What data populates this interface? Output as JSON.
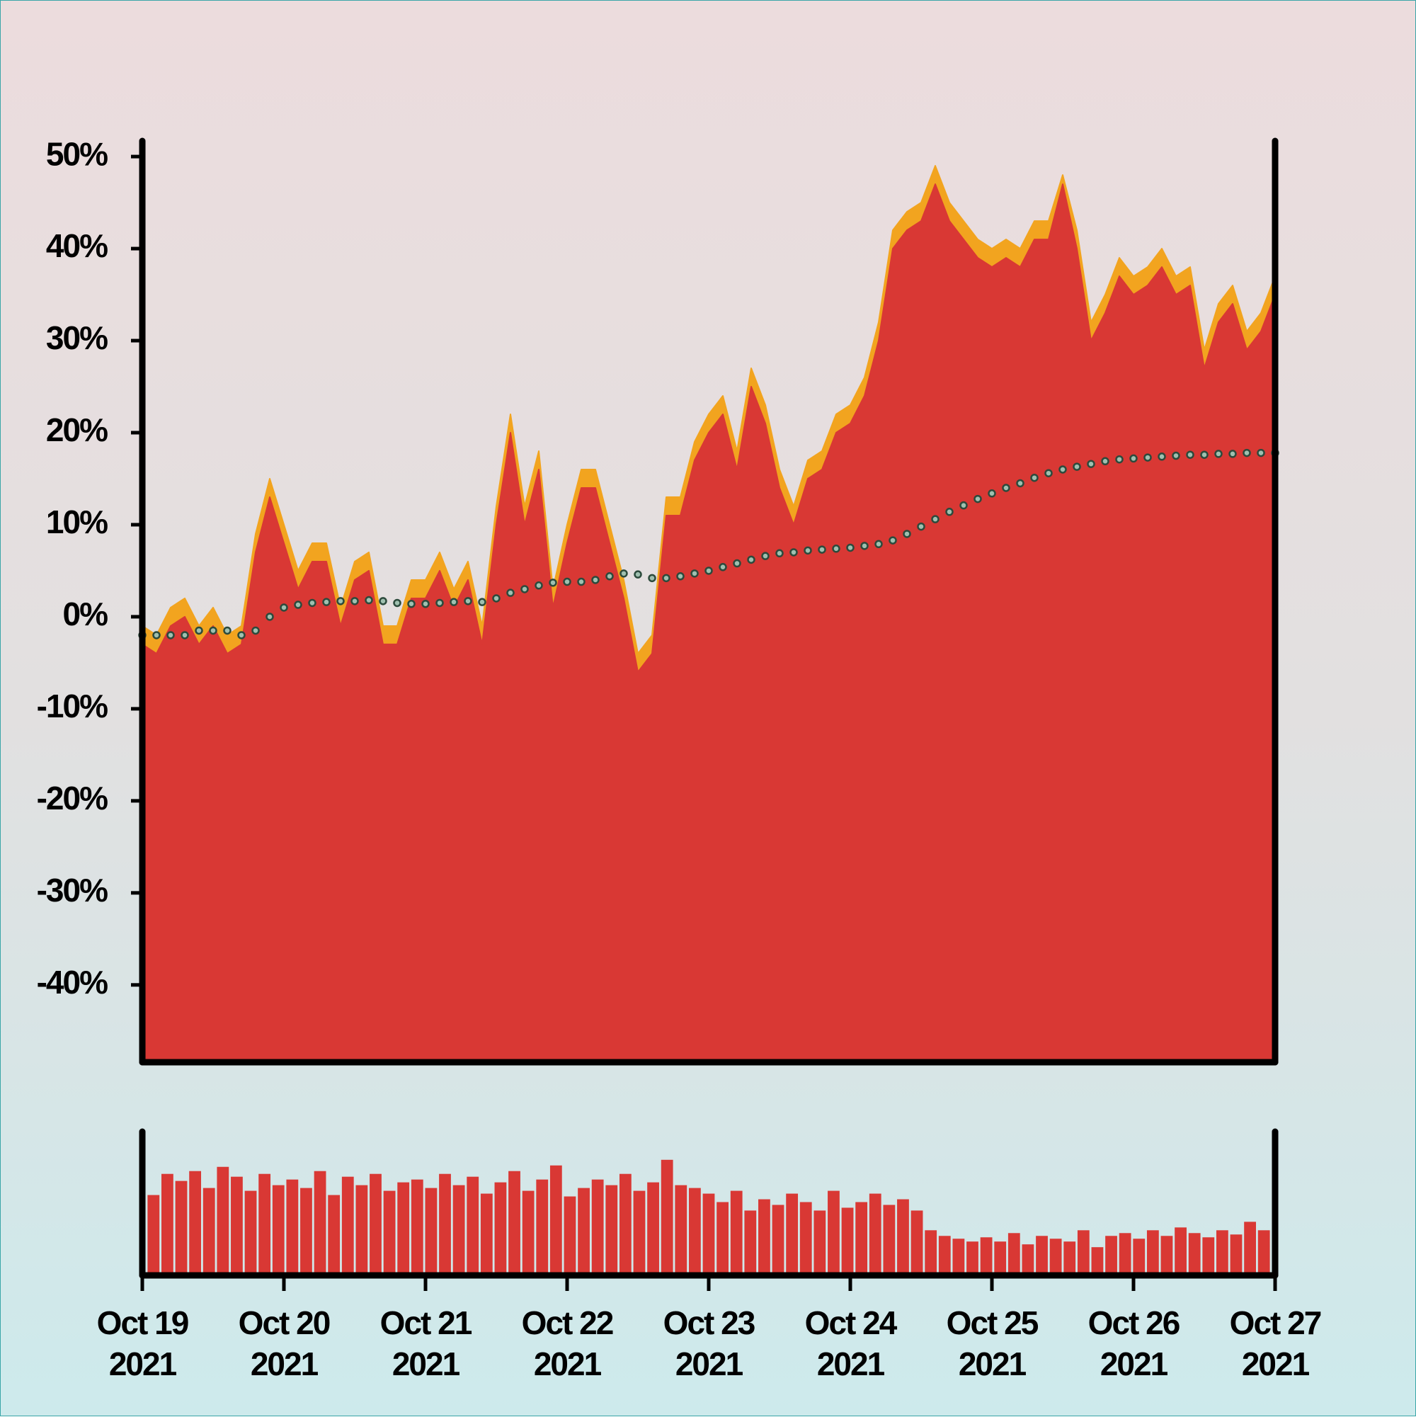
{
  "chart_data": [
    {
      "type": "area",
      "xlim": [
        0,
        8
      ],
      "ylim": [
        -48.4,
        51.7
      ],
      "yticks": [
        {
          "value": -40,
          "label": "-40%"
        },
        {
          "value": -30,
          "label": "-30%"
        },
        {
          "value": -20,
          "label": "-20%"
        },
        {
          "value": -10,
          "label": "-10%"
        },
        {
          "value": 0,
          "label": "0%"
        },
        {
          "value": 10,
          "label": "10%"
        },
        {
          "value": 20,
          "label": "20%"
        },
        {
          "value": 30,
          "label": "30%"
        },
        {
          "value": 40,
          "label": "40%"
        },
        {
          "value": 50,
          "label": "50%"
        }
      ],
      "grid": false,
      "series": [
        {
          "style": "area",
          "color": "#f2a41f",
          "values": [
            -1,
            -2,
            1,
            2,
            -1,
            1,
            -2,
            -1,
            9,
            15,
            10,
            5,
            8,
            8,
            1,
            6,
            7,
            -1,
            -1,
            4,
            4,
            7,
            3,
            6,
            -1,
            12,
            22,
            12,
            18,
            3,
            10,
            16,
            16,
            10,
            4,
            -4,
            -2,
            13,
            13,
            19,
            22,
            24,
            18,
            27,
            23,
            16,
            12,
            17,
            18,
            22,
            23,
            26,
            32,
            42,
            44,
            45,
            49,
            45,
            43,
            41,
            40,
            41,
            40,
            43,
            43,
            48,
            42,
            32,
            35,
            39,
            37,
            38,
            40,
            37,
            38,
            29,
            34,
            36,
            31,
            33,
            37
          ]
        },
        {
          "style": "area",
          "color": "#d93834",
          "values": [
            -3,
            -4,
            -1,
            0,
            -3,
            -1,
            -4,
            -3,
            7,
            13,
            8,
            3,
            6,
            6,
            -1,
            4,
            5,
            -3,
            -3,
            2,
            2,
            5,
            1,
            4,
            -3,
            10,
            20,
            10,
            16,
            1,
            8,
            14,
            14,
            8,
            2,
            -6,
            -4,
            11,
            11,
            17,
            20,
            22,
            16,
            25,
            21,
            14,
            10,
            15,
            16,
            20,
            21,
            24,
            30,
            40,
            42,
            43,
            47,
            43,
            41,
            39,
            38,
            39,
            38,
            41,
            41,
            47,
            40,
            30,
            33,
            37,
            35,
            36,
            38,
            35,
            36,
            27,
            32,
            34,
            29,
            31,
            35
          ]
        },
        {
          "style": "dots",
          "color": "#2c4a3c",
          "values": [
            -2,
            -2,
            -2,
            -2,
            -1.5,
            -1.5,
            -1.5,
            -2,
            -1.5,
            0,
            1,
            1.3,
            1.5,
            1.6,
            1.7,
            1.7,
            1.8,
            1.7,
            1.5,
            1.4,
            1.4,
            1.5,
            1.6,
            1.7,
            1.6,
            2,
            2.6,
            3,
            3.4,
            3.7,
            3.8,
            3.8,
            4,
            4.4,
            4.7,
            4.6,
            4.2,
            4.2,
            4.4,
            4.7,
            5,
            5.4,
            5.8,
            6.2,
            6.6,
            6.9,
            7,
            7.2,
            7.3,
            7.4,
            7.5,
            7.7,
            7.9,
            8.3,
            9,
            9.8,
            10.6,
            11.4,
            12.1,
            12.8,
            13.4,
            14,
            14.5,
            15.1,
            15.6,
            16,
            16.3,
            16.6,
            16.9,
            17.1,
            17.2,
            17.3,
            17.4,
            17.5,
            17.6,
            17.6,
            17.7,
            17.7,
            17.8,
            17.8,
            17.8
          ]
        }
      ]
    },
    {
      "type": "bar",
      "xlim": [
        0,
        8
      ],
      "ylim": [
        0,
        100
      ],
      "color": "#d93834",
      "xticks": [
        {
          "value": 0,
          "label": "Oct 19 2021"
        },
        {
          "value": 1,
          "label": "Oct 20 2021"
        },
        {
          "value": 2,
          "label": "Oct 21 2021"
        },
        {
          "value": 3,
          "label": "Oct 22 2021"
        },
        {
          "value": 4,
          "label": "Oct 23 2021"
        },
        {
          "value": 5,
          "label": "Oct 24 2021"
        },
        {
          "value": 6,
          "label": "Oct 25 2021"
        },
        {
          "value": 7,
          "label": "Oct 26 2021"
        },
        {
          "value": 8,
          "label": "Oct 27 2021"
        }
      ],
      "values": [
        55,
        70,
        65,
        72,
        60,
        75,
        68,
        58,
        70,
        62,
        66,
        60,
        72,
        55,
        68,
        62,
        70,
        58,
        64,
        66,
        60,
        70,
        62,
        68,
        56,
        64,
        72,
        58,
        66,
        76,
        54,
        60,
        66,
        62,
        70,
        58,
        64,
        80,
        62,
        60,
        56,
        50,
        58,
        44,
        52,
        48,
        56,
        50,
        44,
        58,
        46,
        50,
        56,
        48,
        52,
        44,
        30,
        26,
        24,
        22,
        25,
        22,
        28,
        20,
        26,
        24,
        22,
        30,
        18,
        26,
        28,
        24,
        30,
        26,
        32,
        28,
        25,
        30,
        27,
        36,
        30
      ]
    }
  ]
}
